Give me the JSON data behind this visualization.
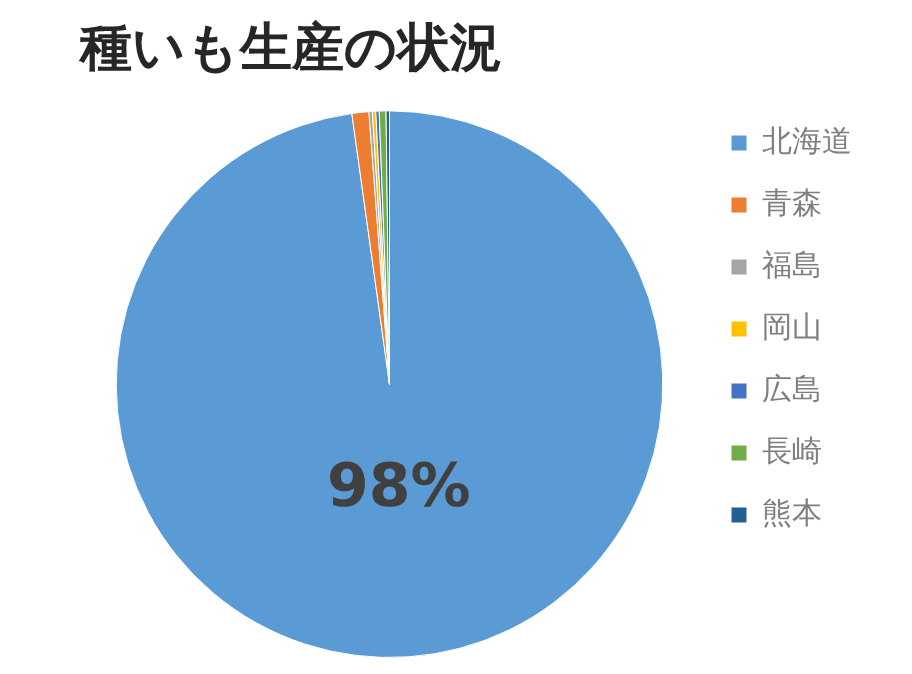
{
  "chart_data": {
    "type": "pie",
    "title": "種いも生産の状況",
    "categories": [
      "北海道",
      "青森",
      "福島",
      "岡山",
      "広島",
      "長崎",
      "熊本"
    ],
    "values": [
      97.8,
      1,
      0.2,
      0.2,
      0.2,
      0.4,
      0.2
    ],
    "colors": [
      "#5b9bd5",
      "#ed7d31",
      "#a5a5a5",
      "#ffc000",
      "#4472c4",
      "#70ad47",
      "#255e91"
    ],
    "value_labels": [
      "98%",
      null,
      null,
      null,
      null,
      null,
      null
    ],
    "legend": "right"
  }
}
